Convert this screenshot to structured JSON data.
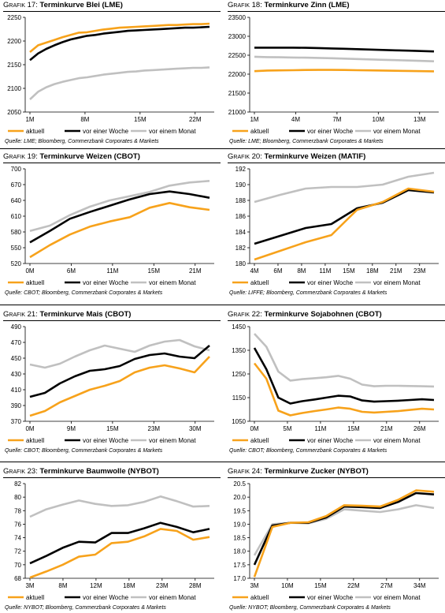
{
  "legend": {
    "labels": [
      "aktuell",
      "vor einer Woche",
      "vor einem Monat"
    ],
    "colors": [
      "#f7a21b",
      "#000000",
      "#c0c0c0"
    ]
  },
  "panels": [
    {
      "title_prefix": "Grafik 17:",
      "title": "Terminkurve Blei (LME)",
      "source": "Quelle: LME; Bloomberg, Commerzbank Corporates & Markets",
      "chart_data": {
        "type": "line",
        "xticks": [
          "1M",
          "8M",
          "15M",
          "22M"
        ],
        "yticks": [
          "2050",
          "2100",
          "2150",
          "2200",
          "2250"
        ],
        "ylim": [
          2050,
          2260
        ],
        "series": [
          {
            "name": "aktuell",
            "values": [
              2183,
              2198,
              2204,
              2210,
              2216,
              2221,
              2226,
              2227,
              2230,
              2233,
              2235,
              2237,
              2238,
              2239,
              2240,
              2241,
              2242,
              2243,
              2243,
              2244,
              2245,
              2245,
              2246
            ]
          },
          {
            "name": "vor einer Woche",
            "values": [
              2165,
              2180,
              2190,
              2198,
              2205,
              2211,
              2215,
              2219,
              2221,
              2224,
              2226,
              2228,
              2230,
              2231,
              2232,
              2233,
              2234,
              2235,
              2236,
              2237,
              2237,
              2238,
              2239
            ]
          },
          {
            "name": "vor einem Monat",
            "values": [
              2078,
              2095,
              2105,
              2112,
              2117,
              2121,
              2125,
              2127,
              2130,
              2133,
              2135,
              2137,
              2139,
              2140,
              2142,
              2143,
              2144,
              2145,
              2146,
              2147,
              2148,
              2148,
              2149
            ]
          }
        ]
      }
    },
    {
      "title_prefix": "Grafik 18:",
      "title": "Terminkurve Zinn (LME)",
      "source": "Quelle: LME; Bloomberg, Commerzbank Corporates & Markets",
      "chart_data": {
        "type": "line",
        "xticks": [
          "1M",
          "4M",
          "7M",
          "10M",
          "13M"
        ],
        "yticks": [
          "21000",
          "21500",
          "22000",
          "22500",
          "23000",
          "23500"
        ],
        "ylim": [
          21000,
          23500
        ],
        "series": [
          {
            "name": "aktuell",
            "values": [
              22080,
              22095,
              22100,
              22105,
              22110,
              22112,
              22112,
              22110,
              22105,
              22100,
              22095,
              22090,
              22085,
              22080,
              22075
            ]
          },
          {
            "name": "vor einer Woche",
            "values": [
              22700,
              22700,
              22700,
              22700,
              22695,
              22690,
              22680,
              22670,
              22660,
              22650,
              22640,
              22630,
              22620,
              22610,
              22600
            ]
          },
          {
            "name": "vor einem Monat",
            "values": [
              22460,
              22450,
              22445,
              22440,
              22435,
              22430,
              22420,
              22410,
              22400,
              22390,
              22380,
              22370,
              22360,
              22350,
              22340
            ]
          }
        ]
      }
    },
    {
      "title_prefix": "Grafik 19:",
      "title": "Terminkurve Weizen (CBOT)",
      "source": "Quelle: CBOT; Bloomberg, Commerzbank Corporates & Markets",
      "chart_data": {
        "type": "line",
        "xticks": [
          "0M",
          "6M",
          "11M",
          "15M",
          "21M"
        ],
        "yticks": [
          "520",
          "550",
          "580",
          "610",
          "640",
          "670",
          "700"
        ],
        "ylim": [
          520,
          700
        ],
        "series": [
          {
            "name": "aktuell",
            "values": [
              532,
              555,
              575,
              590,
              600,
              608,
              626,
              635,
              627,
              622
            ]
          },
          {
            "name": "vor einer Woche",
            "values": [
              560,
              582,
              605,
              618,
              630,
              642,
              652,
              657,
              652,
              645
            ]
          },
          {
            "name": "vor einem Monat",
            "values": [
              582,
              592,
              612,
              628,
              640,
              648,
              656,
              668,
              674,
              677
            ]
          }
        ]
      }
    },
    {
      "title_prefix": "Grafik 20:",
      "title": "Terminkurve Weizen (MATIF)",
      "source": "Quelle: LIFFE; Bloomberg, Commerzbank Corporates & Markets",
      "chart_data": {
        "type": "line",
        "xticks": [
          "4M",
          "6M",
          "8M",
          "11M",
          "15M",
          "18M",
          "21M",
          "23M"
        ],
        "yticks": [
          "180",
          "182",
          "184",
          "186",
          "188",
          "190",
          "192"
        ],
        "ylim": [
          180,
          192
        ],
        "series": [
          {
            "name": "aktuell",
            "values": [
              180.5,
              181.6,
              182.7,
              183.6,
              186.8,
              187.8,
              189.5,
              189.1
            ]
          },
          {
            "name": "vor einer Woche",
            "values": [
              182.5,
              183.5,
              184.5,
              185.0,
              187.0,
              187.7,
              189.3,
              189.0
            ]
          },
          {
            "name": "vor einem Monat",
            "values": [
              187.8,
              188.7,
              189.5,
              189.7,
              189.7,
              190.0,
              191.0,
              191.5
            ]
          }
        ]
      }
    },
    {
      "title_prefix": "Grafik 21:",
      "title": "Terminkurve Mais (CBOT)",
      "source": "Quelle: CBOT; Bloomberg, Commerzbank Corporates & Markets",
      "chart_data": {
        "type": "line",
        "xticks": [
          "0M",
          "9M",
          "15M",
          "23M",
          "30M"
        ],
        "yticks": [
          "370",
          "390",
          "410",
          "430",
          "450",
          "470",
          "490"
        ],
        "ylim": [
          370,
          490
        ],
        "series": [
          {
            "name": "aktuell",
            "values": [
              377,
              383,
              394,
              402,
              410,
              415,
              421,
              432,
              438,
              441,
              437,
              432,
              452
            ]
          },
          {
            "name": "vor einer Woche",
            "values": [
              401,
              406,
              418,
              427,
              434,
              436,
              440,
              449,
              454,
              456,
              452,
              450,
              466
            ]
          },
          {
            "name": "vor einem Monat",
            "values": [
              442,
              438,
              443,
              452,
              460,
              466,
              462,
              458,
              466,
              471,
              473,
              465,
              460
            ]
          }
        ]
      }
    },
    {
      "title_prefix": "Grafik 22:",
      "title": "Terminkurve Sojabohnen (CBOT)",
      "source": "Quelle: CBOT; Bloomberg, Commerzbank Corporates & Markets",
      "chart_data": {
        "type": "line",
        "xticks": [
          "0M",
          "5M",
          "11M",
          "15M",
          "21M",
          "26M"
        ],
        "yticks": [
          "1050",
          "1150",
          "1250",
          "1350",
          "1450"
        ],
        "ylim": [
          1050,
          1450
        ],
        "series": [
          {
            "name": "aktuell",
            "values": [
              1295,
              1230,
              1095,
              1075,
              1085,
              1093,
              1100,
              1108,
              1103,
              1090,
              1087,
              1090,
              1093,
              1098,
              1103,
              1100
            ]
          },
          {
            "name": "vor einer Woche",
            "values": [
              1360,
              1270,
              1150,
              1125,
              1135,
              1142,
              1150,
              1158,
              1155,
              1138,
              1133,
              1135,
              1137,
              1140,
              1143,
              1140
            ]
          },
          {
            "name": "vor einem Monat",
            "values": [
              1420,
              1365,
              1260,
              1222,
              1228,
              1232,
              1236,
              1242,
              1230,
              1205,
              1198,
              1200,
              1200,
              1199,
              1198,
              1197
            ]
          }
        ]
      }
    },
    {
      "title_prefix": "Grafik 23:",
      "title": "Terminkurve Baumwolle (NYBOT)",
      "source": "Quelle: NYBOT; Bloomberg, Commerzbank Corporates & Markets",
      "chart_data": {
        "type": "line",
        "xticks": [
          "3M",
          "8M",
          "12M",
          "18M",
          "23M",
          "28M"
        ],
        "yticks": [
          "68",
          "70",
          "72",
          "74",
          "76",
          "78",
          "80",
          "82"
        ],
        "ylim": [
          68,
          82
        ],
        "series": [
          {
            "name": "aktuell",
            "values": [
              68.1,
              69.0,
              70.0,
              71.2,
              71.5,
              73.2,
              73.4,
              74.2,
              75.3,
              75.0,
              73.7,
              74.1
            ]
          },
          {
            "name": "vor einer Woche",
            "values": [
              70.2,
              71.3,
              72.5,
              73.4,
              73.3,
              74.7,
              74.7,
              75.4,
              76.2,
              75.6,
              74.8,
              75.3
            ]
          },
          {
            "name": "vor einem Monat",
            "values": [
              77.1,
              78.2,
              78.9,
              79.5,
              79.0,
              78.7,
              78.8,
              79.3,
              80.1,
              79.4,
              78.6,
              78.7
            ]
          }
        ]
      }
    },
    {
      "title_prefix": "Grafik 24:",
      "title": "Terminkurve Zucker (NYBOT)",
      "source": "Quelle: NYBOT; Bloomberg, Commerzbank Corporates & Markets",
      "chart_data": {
        "type": "line",
        "xticks": [
          "3M",
          "10M",
          "15M",
          "22M",
          "27M",
          "34M"
        ],
        "yticks": [
          "17.0",
          "17.5",
          "18.0",
          "18.5",
          "19.0",
          "19.5",
          "20.0",
          "20.5"
        ],
        "ylim": [
          17.0,
          20.5
        ],
        "series": [
          {
            "name": "aktuell",
            "values": [
              17.05,
              18.9,
              19.05,
              19.07,
              19.3,
              19.7,
              19.68,
              19.65,
              19.9,
              20.25,
              20.2
            ]
          },
          {
            "name": "vor einer Woche",
            "values": [
              17.5,
              18.95,
              19.05,
              19.05,
              19.25,
              19.65,
              19.63,
              19.6,
              19.82,
              20.15,
              20.1
            ]
          },
          {
            "name": "vor einem Monat",
            "values": [
              17.85,
              19.0,
              19.05,
              19.03,
              19.2,
              19.55,
              19.5,
              19.45,
              19.55,
              19.7,
              19.6
            ]
          }
        ]
      }
    }
  ]
}
